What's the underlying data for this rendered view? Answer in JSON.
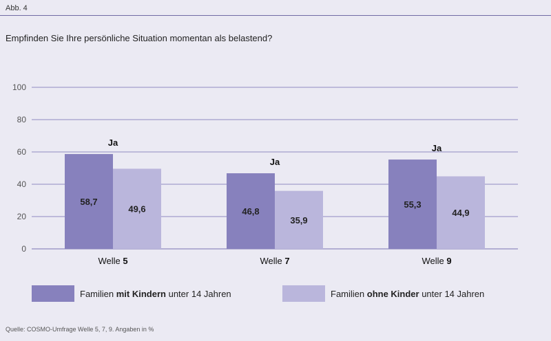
{
  "header": {
    "figure_label": "Abb. 4",
    "question": "Empfinden Sie Ihre persönliche Situation momentan als belastend?"
  },
  "chart_data": {
    "type": "bar",
    "categories": [
      "Welle 5",
      "Welle 7",
      "Welle 9"
    ],
    "category_prefix": "Welle",
    "category_numbers": [
      "5",
      "7",
      "9"
    ],
    "annotation": "Ja",
    "series": [
      {
        "name": "Familien mit Kindern unter 14 Jahren",
        "values": [
          58.7,
          46.8,
          55.3
        ],
        "labels": [
          "58,7",
          "46,8",
          "55,3"
        ],
        "color": "#8781bd"
      },
      {
        "name": "Familien ohne Kinder unter 14 Jahren",
        "values": [
          49.6,
          35.9,
          44.9
        ],
        "labels": [
          "49,6",
          "35,9",
          "44,9"
        ],
        "color": "#bab6dc"
      }
    ],
    "ylim": [
      0,
      100
    ],
    "yticks": [
      0,
      20,
      40,
      60,
      80,
      100
    ],
    "grid": true,
    "legend_position": "bottom"
  },
  "legend": {
    "item1": {
      "pre": "Familien ",
      "bold": "mit Kindern",
      "post": " unter 14 Jahren"
    },
    "item2": {
      "pre": "Familien ",
      "bold": "ohne Kinder",
      "post": " unter 14 Jahren"
    }
  },
  "footer": {
    "source": "Quelle: COSMO-Umfrage Welle 5, 7, 9. Angaben in %"
  },
  "colors": {
    "background": "#ebeaf3",
    "rule": "#6f6aa3",
    "gridline": "#8f8bc0"
  }
}
